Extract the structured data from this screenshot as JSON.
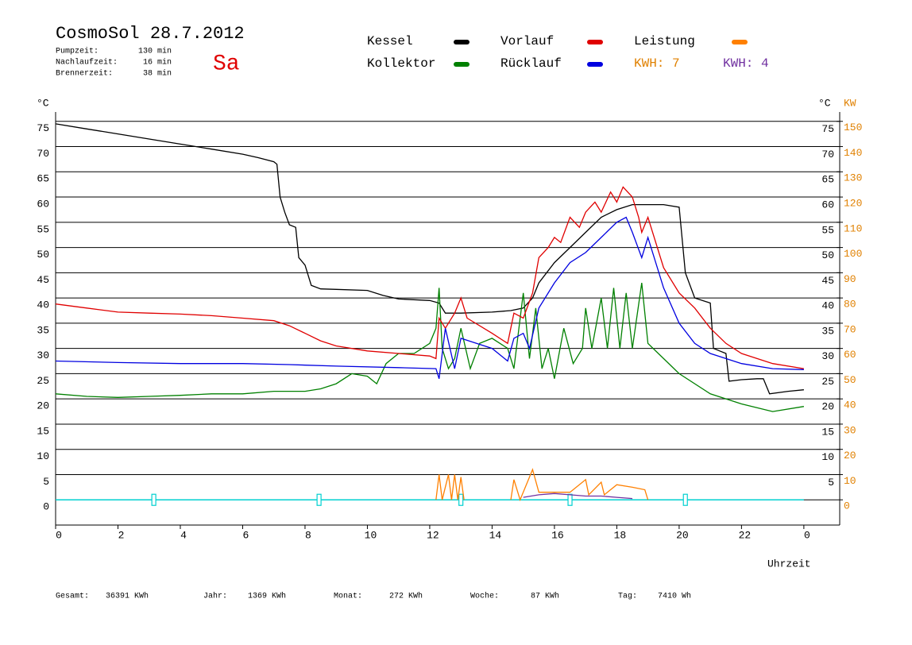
{
  "chart_data": {
    "type": "line",
    "title": "CosmoSol 28.7.2012",
    "day": "Sa",
    "info": [
      [
        "Pumpzeit:",
        "130 min"
      ],
      [
        "Nachlaufzeit:",
        "16 min"
      ],
      [
        "Brennerzeit:",
        "38 min"
      ]
    ],
    "totals": [
      [
        "Gesamt:",
        "36391 KWh"
      ],
      [
        "Jahr:",
        "1369 KWh"
      ],
      [
        "Monat:",
        "272 KWh"
      ],
      [
        "Woche:",
        "87 KWh"
      ],
      [
        "Tag:",
        "7410 Wh"
      ]
    ],
    "y_label": "°C",
    "y2_label_c": "°C",
    "y2_label": "KW",
    "x_label": "Uhrzeit",
    "xlim": [
      0,
      25.15
    ],
    "xticks": [
      0,
      2,
      4,
      6,
      8,
      10,
      12,
      14,
      16,
      18,
      20,
      22,
      {
        "value": 24,
        "label": "0"
      }
    ],
    "ylim": [
      -5,
      80
    ],
    "yticks": [
      0,
      5,
      10,
      15,
      20,
      25,
      30,
      35,
      40,
      45,
      50,
      55,
      60,
      65,
      70,
      75
    ],
    "y2ticks_c": [
      5,
      10,
      15,
      20,
      25,
      30,
      35,
      40,
      45,
      50,
      55,
      60,
      65,
      70,
      75
    ],
    "y2lim": [
      -10,
      160
    ],
    "y2ticks": [
      0,
      10,
      20,
      30,
      40,
      50,
      60,
      70,
      80,
      90,
      100,
      110,
      120,
      130,
      140,
      150
    ],
    "y2color": "#e08000",
    "grid": true,
    "series": [
      {
        "name": "Kessel",
        "color": "#000000",
        "x": [
          0,
          1,
          2,
          3,
          4,
          5,
          6,
          6.5,
          7,
          7.1,
          7.2,
          7.35,
          7.5,
          7.7,
          7.8,
          8,
          8.2,
          8.5,
          9,
          10,
          10.5,
          11,
          12,
          12.3,
          12.5,
          13,
          14,
          14.6,
          15,
          15.3,
          15.5,
          16,
          16.5,
          17,
          17.5,
          18,
          18.5,
          19,
          19.5,
          20,
          20.2,
          20.5,
          21,
          21.1,
          21.3,
          21.5,
          21.6,
          22,
          22.5,
          22.7,
          22.9,
          23.5,
          24
        ],
        "values": [
          74.5,
          73.5,
          72.5,
          71.5,
          70.5,
          69.5,
          68.5,
          67.8,
          67,
          66.5,
          60,
          57,
          54.5,
          54,
          48,
          46.5,
          42.5,
          41.8,
          41.7,
          41.5,
          40.5,
          39.8,
          39.5,
          39,
          37,
          37,
          37.2,
          37.5,
          38,
          40,
          43,
          47,
          50,
          53,
          56,
          57.5,
          58.5,
          58.5,
          58.5,
          58,
          45,
          40,
          39,
          30,
          29.5,
          29,
          23.5,
          23.8,
          24,
          24,
          21,
          21.5,
          21.8
        ]
      },
      {
        "name": "Kollektor",
        "color": "#008000",
        "x": [
          0,
          1,
          2,
          3,
          4,
          5,
          6,
          7,
          8,
          8.5,
          9,
          9.5,
          10,
          10.3,
          10.6,
          11,
          11.5,
          12,
          12.2,
          12.3,
          12.4,
          12.6,
          12.8,
          13,
          13.3,
          13.6,
          14,
          14.5,
          14.7,
          15,
          15.2,
          15.4,
          15.6,
          15.8,
          16,
          16.3,
          16.6,
          16.9,
          17,
          17.2,
          17.5,
          17.7,
          17.9,
          18.1,
          18.3,
          18.5,
          18.8,
          19,
          19.5,
          20,
          21,
          22,
          23,
          24
        ],
        "values": [
          21,
          20.5,
          20.3,
          20.5,
          20.7,
          21,
          21,
          21.5,
          21.5,
          22,
          23,
          25,
          24.5,
          23,
          27,
          29,
          29,
          31,
          34,
          42,
          30,
          26,
          28,
          34,
          26,
          31,
          32,
          30,
          26,
          41,
          28,
          38,
          26,
          30,
          24,
          34,
          27,
          30,
          38,
          30,
          40,
          30,
          42,
          30,
          41,
          30,
          43,
          31,
          28,
          25,
          21,
          19,
          17.5,
          18.5
        ]
      },
      {
        "name": "Vorlauf",
        "color": "#e00000",
        "x": [
          0,
          1,
          2,
          3,
          4,
          5,
          6,
          7,
          7.5,
          8,
          8.5,
          9,
          10,
          11,
          12,
          12.2,
          12.3,
          12.5,
          12.8,
          13,
          13.2,
          14,
          14.5,
          14.7,
          15,
          15.3,
          15.5,
          15.8,
          16,
          16.2,
          16.5,
          16.8,
          17,
          17.3,
          17.5,
          17.8,
          18,
          18.2,
          18.5,
          18.7,
          18.8,
          19,
          19.5,
          20,
          20.5,
          21,
          21.5,
          22,
          23,
          24
        ],
        "values": [
          38.8,
          38,
          37.2,
          37,
          36.8,
          36.5,
          36,
          35.5,
          34.5,
          33,
          31.5,
          30.5,
          29.5,
          29,
          28.5,
          28,
          36,
          34,
          37,
          40,
          36,
          33,
          31,
          37,
          36,
          41,
          48,
          50,
          52,
          51,
          56,
          54,
          57,
          59,
          57,
          61,
          59,
          62,
          60,
          56,
          53,
          56,
          46,
          41,
          38,
          34,
          31,
          29,
          27,
          26
        ]
      },
      {
        "name": "Rücklauf",
        "color": "#0000e0",
        "x": [
          0,
          2,
          4,
          6,
          7.5,
          9,
          11,
          12.2,
          12.3,
          12.5,
          12.8,
          13,
          13.5,
          14,
          14.5,
          14.7,
          15,
          15.2,
          15.5,
          16,
          16.5,
          17,
          17.5,
          18,
          18.3,
          18.5,
          18.8,
          19,
          19.5,
          20,
          20.5,
          21,
          22,
          23,
          24
        ],
        "values": [
          27.5,
          27.2,
          27,
          27,
          26.8,
          26.5,
          26.2,
          26,
          24,
          34,
          26,
          32,
          31,
          30,
          27.5,
          32,
          33,
          30,
          38,
          43,
          47,
          49,
          52,
          55,
          56,
          53,
          48,
          52,
          42,
          35,
          31,
          29,
          27,
          26,
          25.8
        ]
      },
      {
        "name": "Leistung",
        "color": "#ff8000",
        "axis": "y2",
        "x": [
          12.2,
          12.3,
          12.4,
          12.6,
          12.7,
          12.8,
          12.9,
          13,
          13.1,
          13.5,
          14.6,
          14.7,
          14.9,
          15.3,
          15.5,
          16,
          16.5,
          17,
          17.1,
          17.5,
          17.6,
          18,
          18.5,
          18.9,
          19
        ],
        "values": [
          0,
          10,
          0,
          10,
          0,
          10,
          0,
          9,
          0,
          null,
          0,
          8,
          0,
          12,
          3,
          3,
          3,
          8,
          2,
          7,
          2,
          6,
          5,
          4,
          0
        ]
      },
      {
        "color": "#7030a0",
        "axis": "y2",
        "x": [
          15,
          15.5,
          16,
          16.5,
          17,
          17.5,
          18,
          18.5
        ],
        "values": [
          1,
          2,
          2.5,
          2,
          1.5,
          1.5,
          1,
          0.5
        ]
      }
    ],
    "kwh": [
      {
        "label": "KWH: 7",
        "color": "#e08000"
      },
      {
        "label": "KWH: 4",
        "color": "#7030a0"
      }
    ],
    "markers": {
      "color": "#00d0d0",
      "x": [
        3.15,
        8.45,
        13.0,
        16.5,
        20.2
      ]
    }
  }
}
